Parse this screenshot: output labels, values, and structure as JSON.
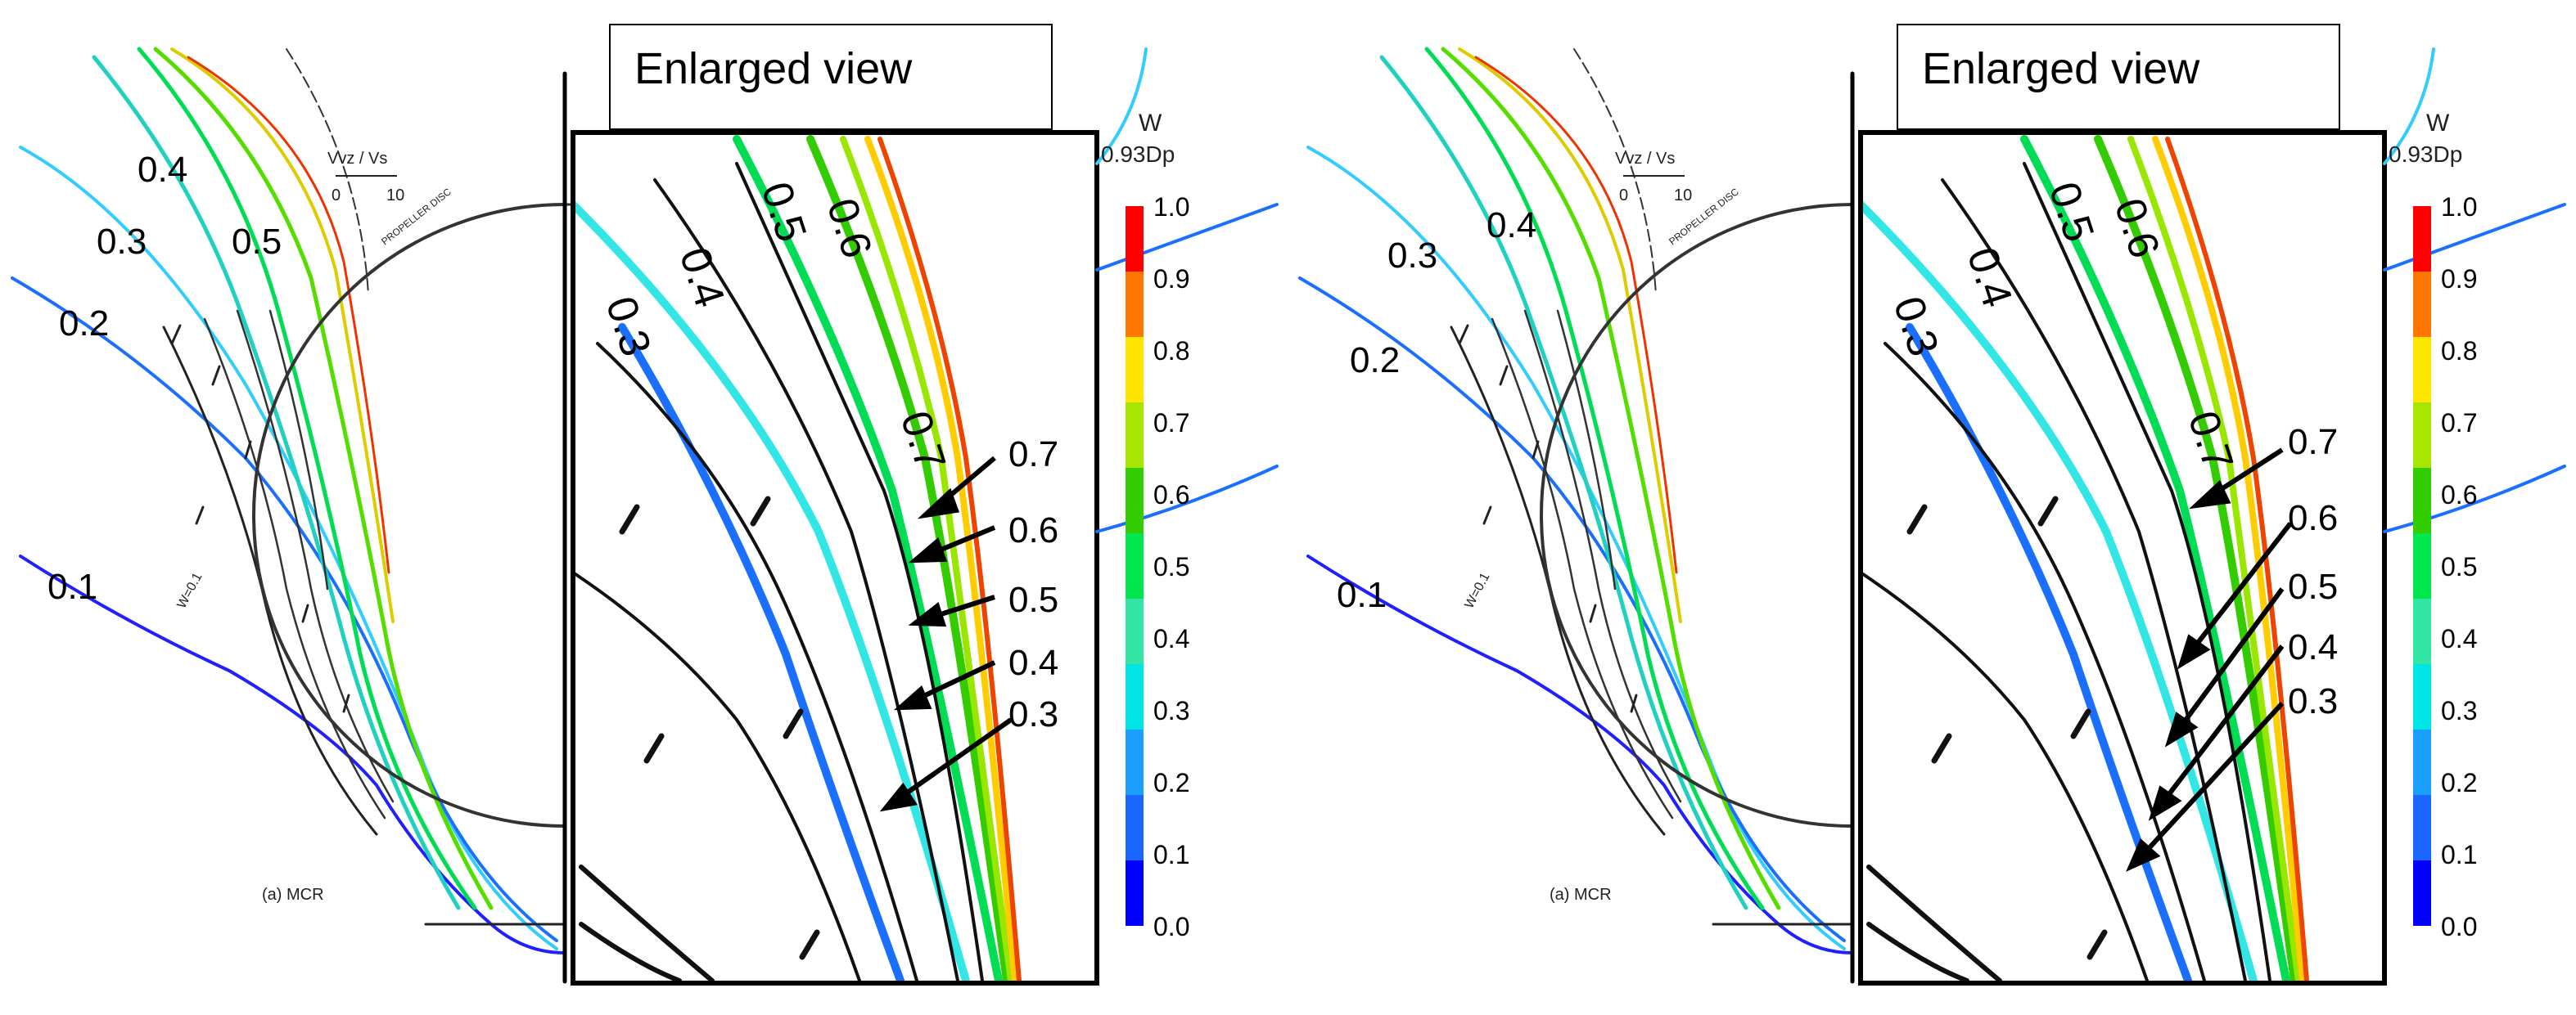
{
  "figure": {
    "panels": [
      {
        "title": "Enlarged view",
        "contour_labels": [
          "0.4",
          "0.3",
          "0.5",
          "0.2",
          "0.1"
        ],
        "arrow_labels": [
          "0.7",
          "0.6",
          "0.5",
          "0.4",
          "0.3"
        ],
        "enlarged_contour_labels": [
          "0.6",
          "0.5",
          "0.4",
          "0.3",
          "0.7"
        ],
        "caption": "(a) MCR",
        "scale_label": "Vvz / Vs",
        "scale_ticks": [
          "0",
          "10"
        ],
        "disc_label": "PROPELLER DISC",
        "wake_label": "W=0.1"
      },
      {
        "title": "Enlarged view",
        "contour_labels": [
          "0.4",
          "0.3",
          "0.2",
          "0.1"
        ],
        "arrow_labels": [
          "0.7",
          "0.6",
          "0.5",
          "0.4",
          "0.3"
        ],
        "enlarged_contour_labels": [
          "0.6",
          "0.5",
          "0.4",
          "0.3",
          "0.7"
        ],
        "caption": "(a) MCR",
        "scale_label": "Vvz / Vs",
        "scale_ticks": [
          "0",
          "10"
        ],
        "disc_label": "PROPELLER DISC",
        "wake_label": "W=0.1"
      }
    ],
    "colorbar": {
      "title": "W",
      "subtitle": "0.93Dp",
      "ticks": [
        "1.0",
        "0.9",
        "0.8",
        "0.7",
        "0.6",
        "0.5",
        "0.4",
        "0.3",
        "0.2",
        "0.1",
        "0.0"
      ],
      "colors": [
        "#ff0000",
        "#ff7700",
        "#ffe600",
        "#a6e600",
        "#33cc00",
        "#00e64d",
        "#33e6a6",
        "#00e6e6",
        "#1a9fff",
        "#1a66ff",
        "#0000ff"
      ]
    }
  }
}
